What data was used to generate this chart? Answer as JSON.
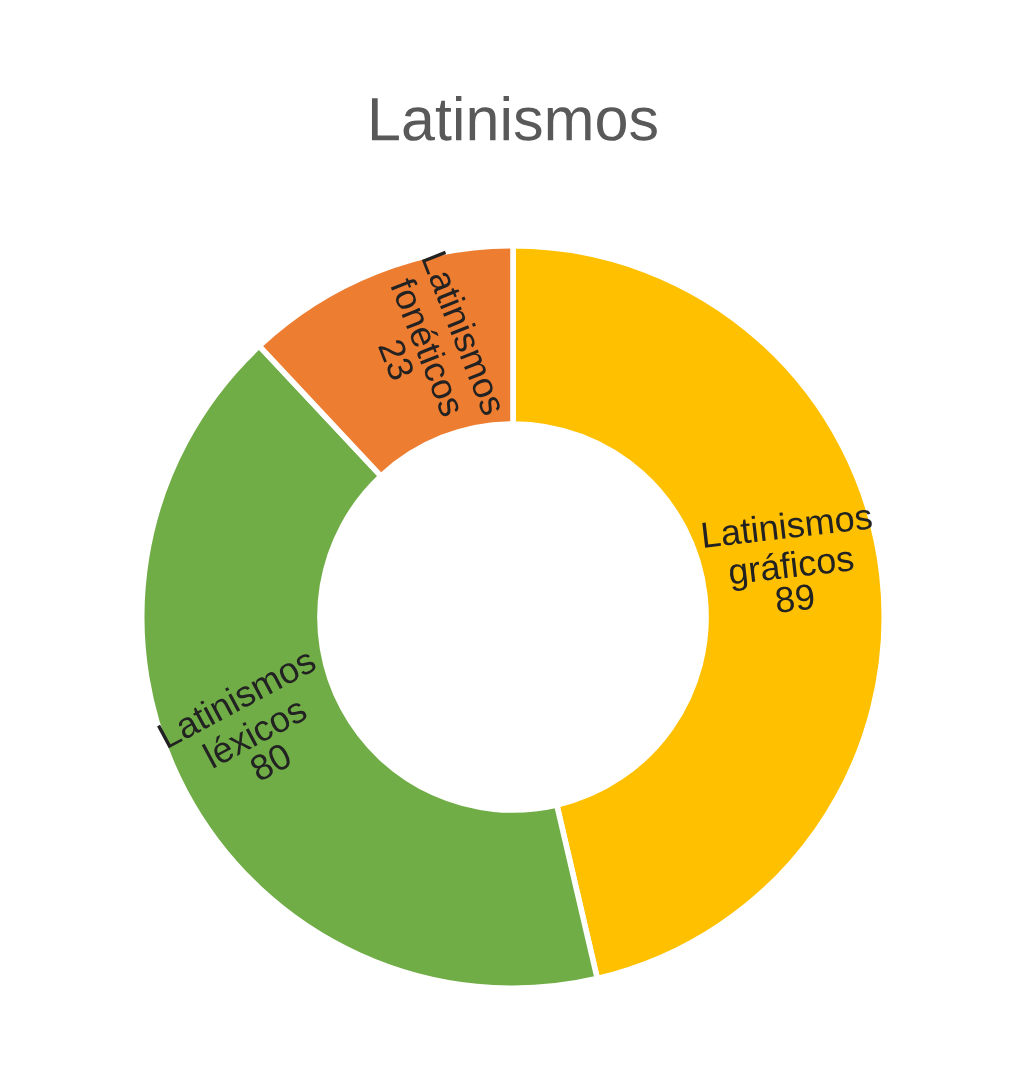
{
  "chart_data": {
    "type": "donut",
    "title": "Latinismos",
    "categories": [
      "Latinismos gráficos",
      "Latinismos léxicos",
      "Latinismos fonéticos"
    ],
    "values": [
      89,
      80,
      23
    ],
    "colors": [
      "#ffc000",
      "#70ad47",
      "#ed7d31"
    ],
    "data_labels": true,
    "legend": false
  }
}
